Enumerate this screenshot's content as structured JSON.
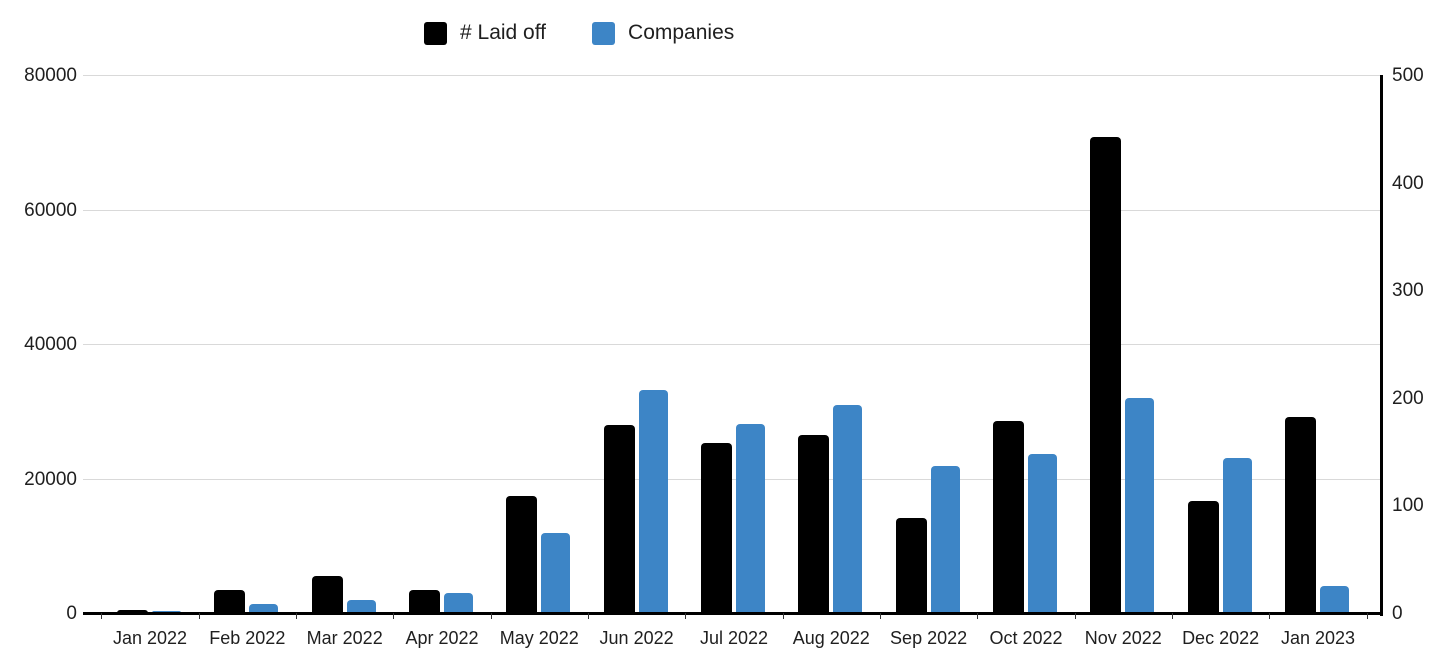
{
  "chart_data": {
    "type": "bar",
    "title": "",
    "categories": [
      "Jan 2022",
      "Feb 2022",
      "Mar 2022",
      "Apr 2022",
      "May 2022",
      "Jun 2022",
      "Jul 2022",
      "Aug 2022",
      "Sep 2022",
      "Oct 2022",
      "Nov 2022",
      "Dec 2022",
      "Jan 2023"
    ],
    "series": [
      {
        "name": "# Laid off",
        "axis": "left",
        "color": "#000000",
        "values": [
          500,
          3400,
          5500,
          3500,
          17400,
          27900,
          25300,
          26500,
          14100,
          28600,
          70800,
          16700,
          29200
        ]
      },
      {
        "name": "Companies",
        "axis": "right",
        "color": "#3d85c6",
        "values": [
          2,
          8,
          12,
          19,
          74,
          207,
          176,
          193,
          137,
          148,
          200,
          144,
          25
        ]
      }
    ],
    "left_axis": {
      "min": 0,
      "max": 80000,
      "ticks": [
        "0",
        "20000",
        "40000",
        "60000",
        "80000"
      ]
    },
    "right_axis": {
      "min": 0,
      "max": 500,
      "ticks": [
        "0",
        "100",
        "200",
        "300",
        "400",
        "500"
      ]
    },
    "legend_position": "top",
    "grid": true,
    "colors": {
      "gridline": "#d9d9d9",
      "axis_line": "#000000",
      "label_text": "#1f1f1f"
    }
  }
}
